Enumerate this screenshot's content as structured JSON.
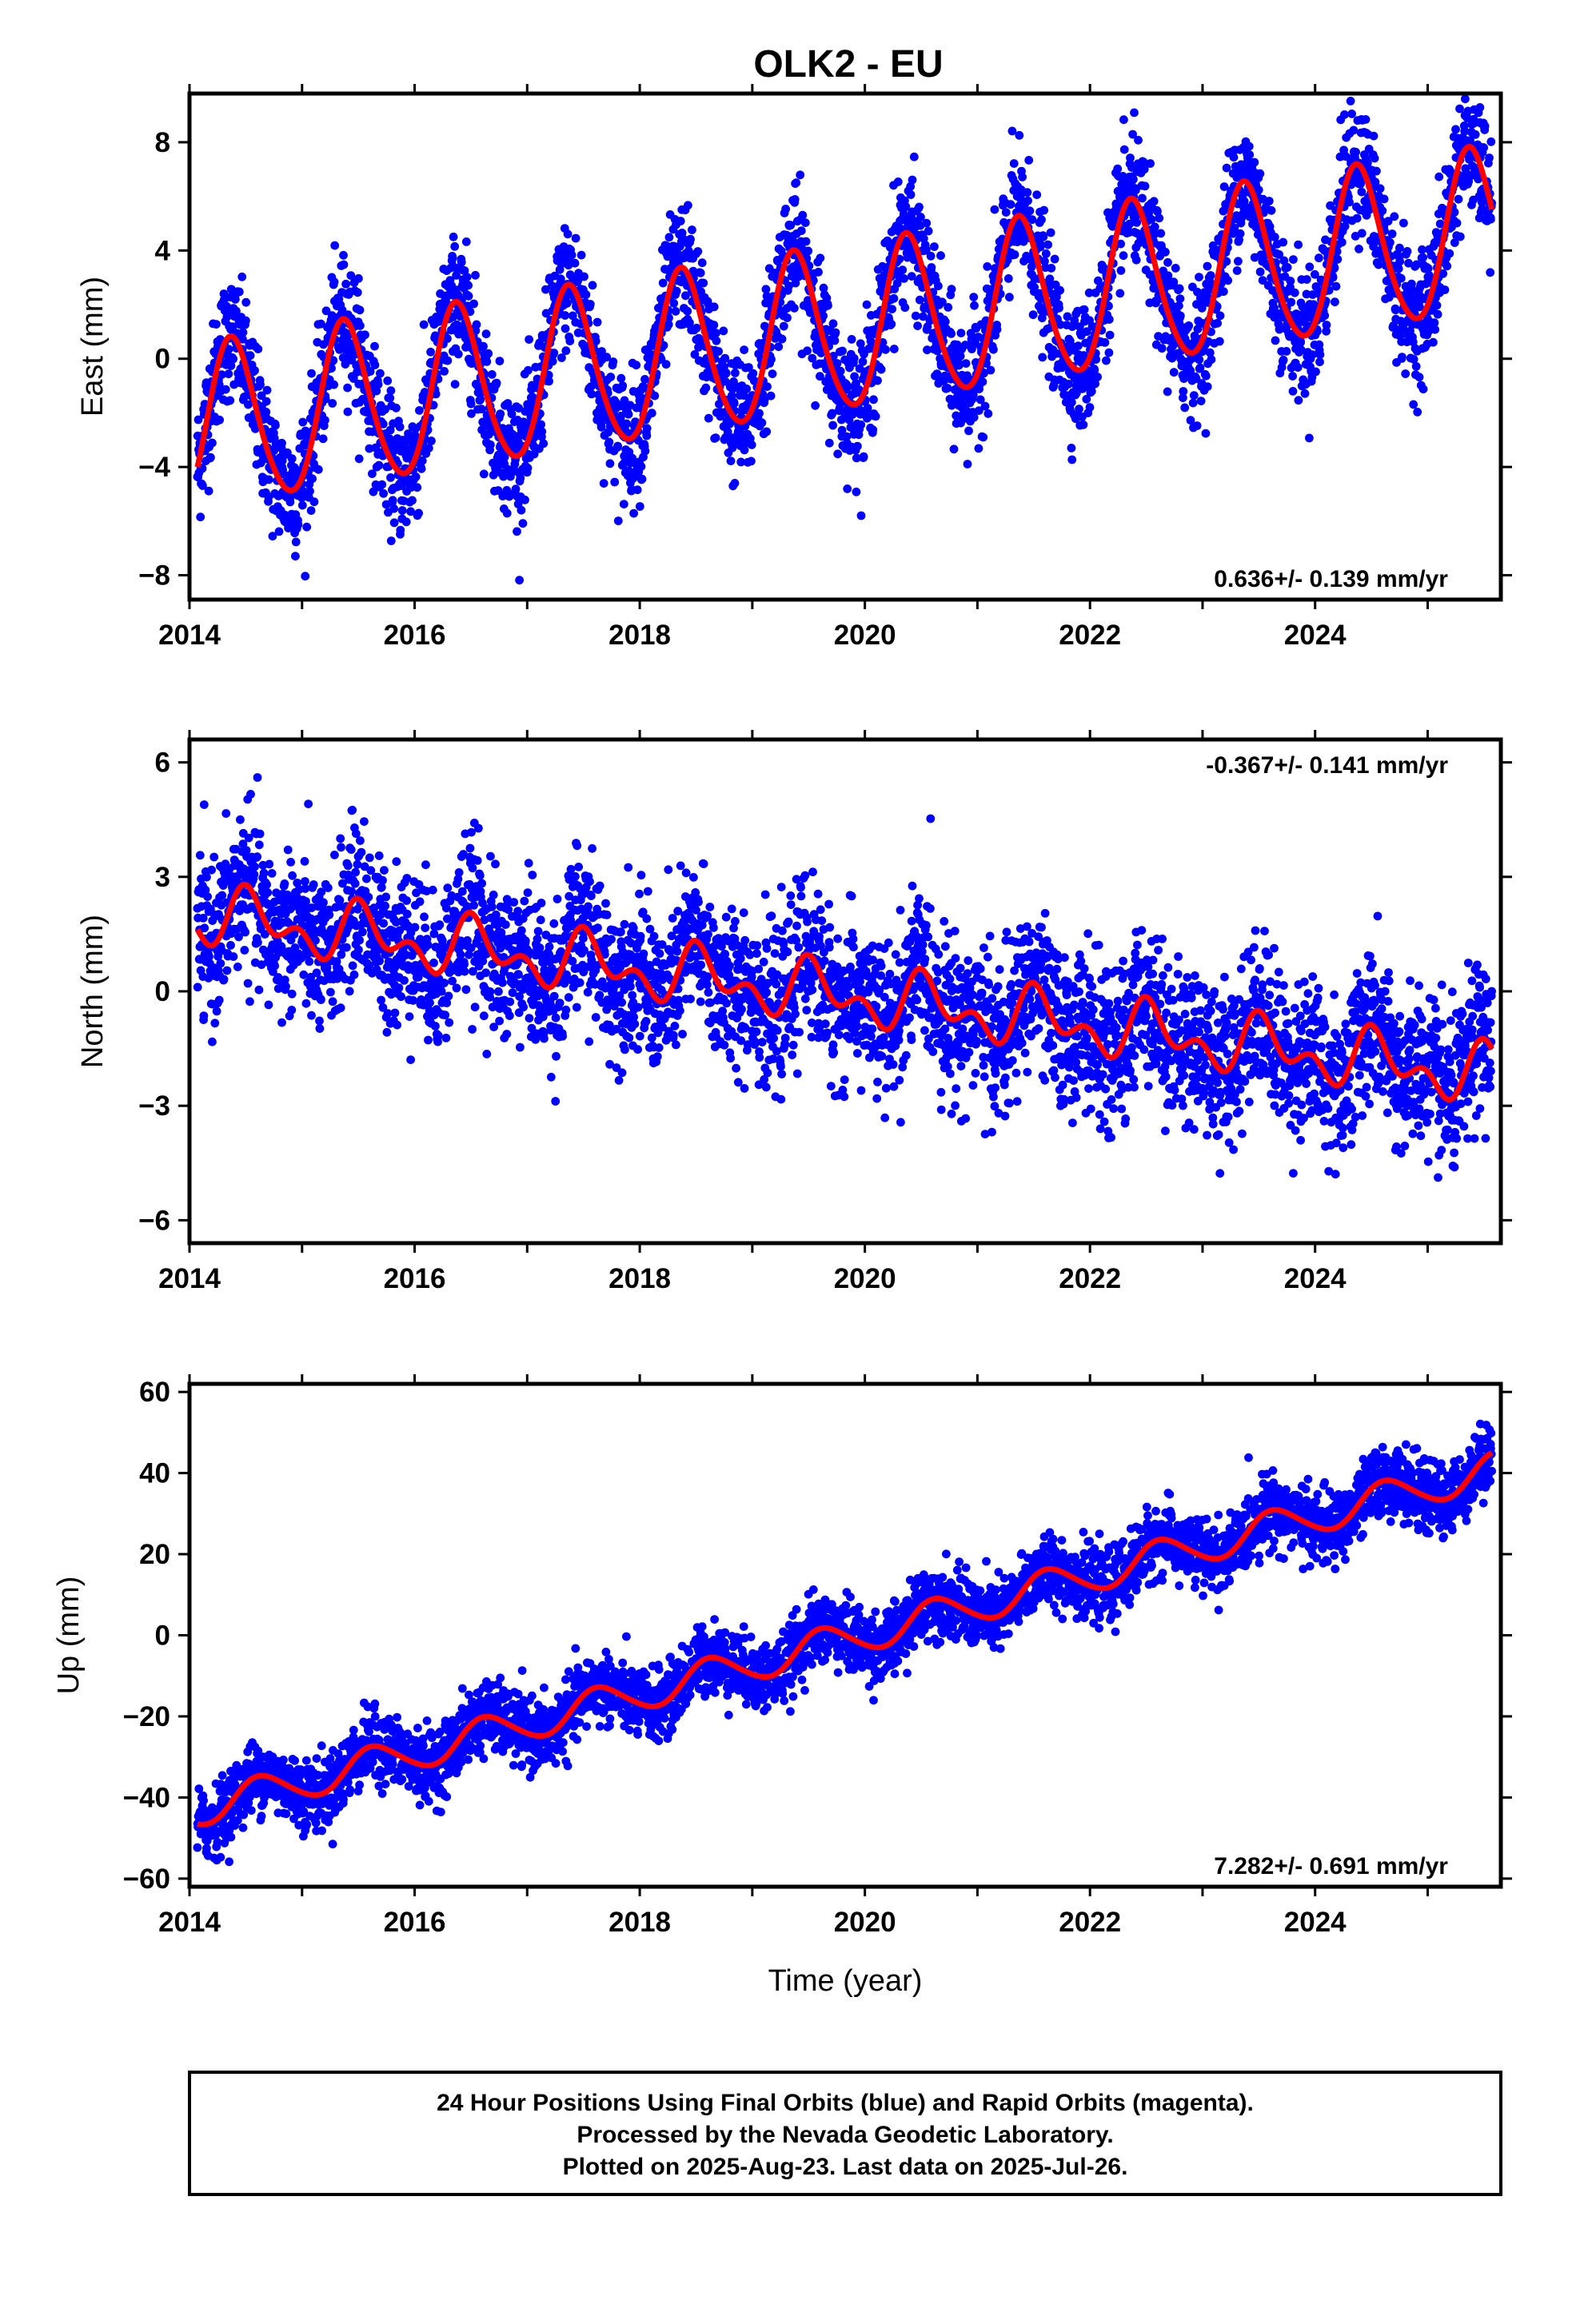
{
  "title": "OLK2 - EU",
  "chart_data": [
    {
      "type": "scatter",
      "component": "East",
      "ylabel": "East (mm)",
      "xlabel": "",
      "xlim": [
        2014.0,
        2025.65
      ],
      "ylim": [
        -8.9,
        9.8
      ],
      "x_ticks": [
        "2014",
        "2016",
        "2018",
        "2020",
        "2022",
        "2024"
      ],
      "y_ticks": [
        "8",
        "4",
        "0",
        "−4",
        "−8"
      ],
      "y_tick_values": [
        8,
        4,
        0,
        -4,
        -8
      ],
      "rate_label": "0.636+/- 0.139 mm/yr",
      "rate_position": "bottom-right",
      "model": {
        "start": 2014.07,
        "end": 2025.57,
        "offset": -2.6,
        "trend": 0.636,
        "amp_annual": 3.0,
        "phase_annual": 2014.13,
        "amp_semiannual": 0.3,
        "phase_semiannual": 2014.2
      },
      "scatter_noise": 1.15,
      "series": [
        {
          "name": "Final Orbits",
          "color": "#0000ff",
          "marker": "dot"
        },
        {
          "name": "fit",
          "color": "#ff0000",
          "marker": "line"
        }
      ]
    },
    {
      "type": "scatter",
      "component": "North",
      "ylabel": "North (mm)",
      "xlabel": "",
      "xlim": [
        2014.0,
        2025.65
      ],
      "ylim": [
        -6.6,
        6.6
      ],
      "x_ticks": [
        "2014",
        "2016",
        "2018",
        "2020",
        "2022",
        "2024"
      ],
      "y_ticks": [
        "6",
        "3",
        "0",
        "−3",
        "−6"
      ],
      "y_tick_values": [
        6,
        3,
        0,
        -3,
        -6
      ],
      "rate_label": "-0.367+/- 0.141 mm/yr",
      "rate_position": "top-right",
      "model": {
        "start": 2014.07,
        "end": 2025.57,
        "offset": 2.0,
        "trend": -0.367,
        "amp_annual": 0.55,
        "phase_annual": 2014.3,
        "amp_semiannual": 0.45,
        "phase_semiannual": 2014.35
      },
      "scatter_noise": 1.0,
      "series": [
        {
          "name": "Final Orbits",
          "color": "#0000ff",
          "marker": "dot"
        },
        {
          "name": "fit",
          "color": "#ff0000",
          "marker": "line"
        }
      ]
    },
    {
      "type": "scatter",
      "component": "Up",
      "ylabel": "Up (mm)",
      "xlabel": "Time (year)",
      "xlim": [
        2014.0,
        2025.65
      ],
      "ylim": [
        -62,
        62
      ],
      "x_ticks": [
        "2014",
        "2016",
        "2018",
        "2020",
        "2022",
        "2024"
      ],
      "y_ticks": [
        "60",
        "40",
        "20",
        "0",
        "−20",
        "−40",
        "−60"
      ],
      "y_tick_values": [
        60,
        40,
        20,
        0,
        -20,
        -40,
        -60
      ],
      "rate_label": "7.282+/- 0.691 mm/yr",
      "rate_position": "bottom-right",
      "model": {
        "start": 2014.07,
        "end": 2025.57,
        "offset": -43.0,
        "trend": 7.282,
        "amp_annual": 4.2,
        "phase_annual": 2014.38,
        "amp_semiannual": 0.4,
        "phase_semiannual": 2014.4
      },
      "scatter_noise": 4.2,
      "series": [
        {
          "name": "Final Orbits",
          "color": "#0000ff",
          "marker": "dot"
        },
        {
          "name": "fit",
          "color": "#ff0000",
          "marker": "line"
        }
      ]
    }
  ],
  "caption": [
    "24 Hour Positions Using Final Orbits (blue) and Rapid Orbits (magenta).",
    "Processed by the Nevada Geodetic Laboratory.",
    "Plotted on 2025-Aug-23. Last data on 2025-Jul-26."
  ]
}
